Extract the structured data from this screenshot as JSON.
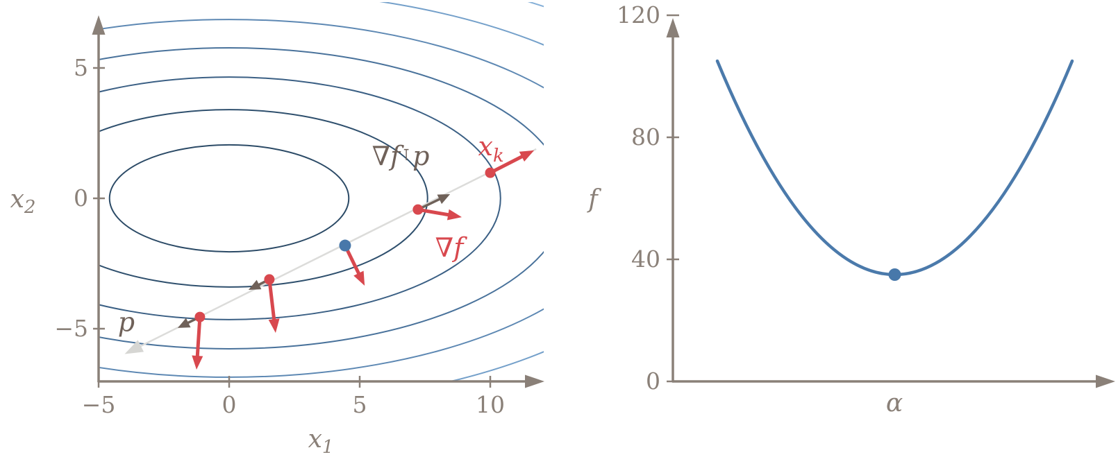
{
  "colors": {
    "axis": "#8a8078",
    "tick_label": "#8a8078",
    "annotation_gray": "#6f6159",
    "red": "#d8484e",
    "projection_arrow": "#6f6159",
    "faint_line": "#dcdcda",
    "faint_arrow": "#d6d6d3",
    "blue_point": "#4878aa",
    "curve": "#4b7aab",
    "contours": [
      "#2b4a66",
      "#2e4f6d",
      "#3a5f84",
      "#49729b",
      "#5d88b3",
      "#74a0ca",
      "#86b0d8"
    ]
  },
  "chart_data": [
    {
      "type": "contour",
      "title": "",
      "xlabel": {
        "base": "x",
        "sub": "1"
      },
      "ylabel": {
        "base": "x",
        "sub": "2"
      },
      "xticks": [
        -5,
        0,
        5,
        10
      ],
      "yticks": [
        -5,
        0,
        5
      ],
      "xlim": [
        -5,
        12
      ],
      "ylim": [
        -7.05,
        6.95
      ],
      "grid": false,
      "contour_center": [
        0,
        0
      ],
      "contour_aspect": 2.235,
      "contour_semi_axes_b": [
        2.05,
        3.4,
        4.65,
        5.77,
        6.86,
        7.98,
        9.12
      ],
      "search_line": {
        "start": [
          -3.86,
          -5.9
        ],
        "end": [
          11.76,
          1.89
        ],
        "arrow_at": "start"
      },
      "points": [
        {
          "x": -1.12,
          "y": -4.55,
          "color": "red"
        },
        {
          "x": 1.54,
          "y": -3.11,
          "color": "red"
        },
        {
          "x": 4.44,
          "y": -1.81,
          "color": "blue"
        },
        {
          "x": 7.23,
          "y": -0.43,
          "color": "red"
        },
        {
          "x": 10.0,
          "y": 0.98,
          "color": "red"
        }
      ],
      "gradient_arrows": [
        {
          "from": [
            -1.12,
            -4.55
          ],
          "to": [
            -1.25,
            -6.57
          ]
        },
        {
          "from": [
            1.54,
            -3.11
          ],
          "to": [
            1.78,
            -5.16
          ]
        },
        {
          "from": [
            4.44,
            -1.81
          ],
          "to": [
            5.19,
            -3.35
          ]
        },
        {
          "from": [
            7.23,
            -0.43
          ],
          "to": [
            8.91,
            -0.72
          ]
        },
        {
          "from": [
            10.0,
            0.98
          ],
          "to": [
            11.68,
            1.84
          ]
        }
      ],
      "projection_arrows": [
        {
          "from": [
            -1.12,
            -4.55
          ],
          "to": [
            -1.97,
            -4.97
          ]
        },
        {
          "from": [
            1.54,
            -3.11
          ],
          "to": [
            0.74,
            -3.51
          ]
        },
        {
          "from": [
            7.23,
            -0.43
          ],
          "to": [
            8.46,
            0.16
          ]
        }
      ],
      "annotations": {
        "p": {
          "text": "p",
          "x": -3.94,
          "y": -4.79
        },
        "grad_fp": {
          "pre": "∇f",
          "t": "⊺",
          "post": "p",
          "x": 6.57,
          "y": 1.6
        },
        "grad_f": {
          "text": "∇f",
          "x": 8.43,
          "y": -1.94
        },
        "xk": {
          "base": "x",
          "sub": "k",
          "x": 10.03,
          "y": 1.97
        }
      }
    },
    {
      "type": "line",
      "title": "",
      "xlabel": "α",
      "ylabel": "f",
      "xticks": [],
      "yticks": [
        0,
        40,
        80,
        120
      ],
      "ylim": [
        0,
        120
      ],
      "grid": false,
      "curve": {
        "shape": "parabola",
        "end_f": 105,
        "min_f": 35
      },
      "min_point": {
        "f": 35,
        "marked": true
      }
    }
  ]
}
